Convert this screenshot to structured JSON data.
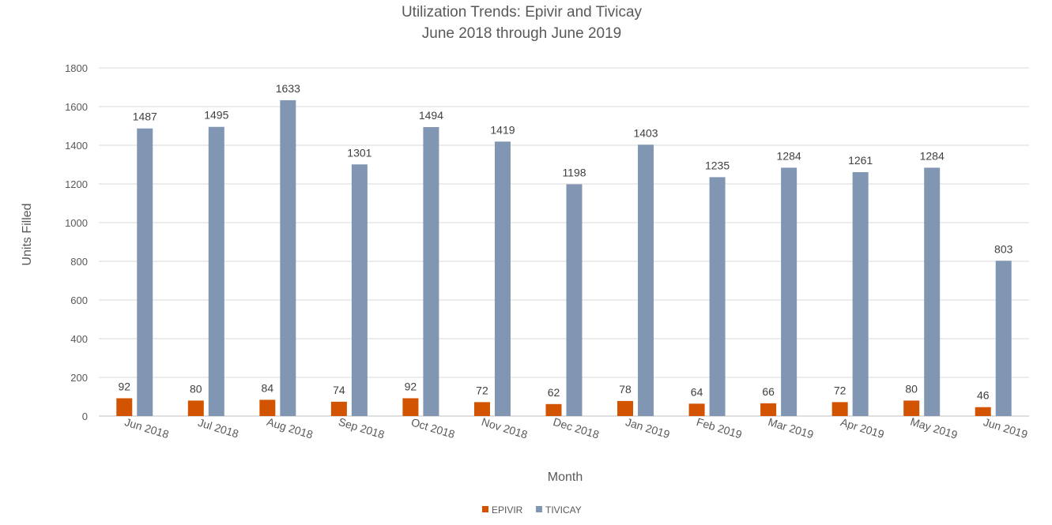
{
  "chart_data": {
    "type": "bar",
    "title": "Utilization Trends:  Epivir and Tivicay",
    "subtitle": "June 2018 through June 2019",
    "xlabel": "Month",
    "ylabel": "Units Filled",
    "ylim": [
      0,
      1800
    ],
    "yticks": [
      0,
      200,
      400,
      600,
      800,
      1000,
      1200,
      1400,
      1600,
      1800
    ],
    "grid": true,
    "legend_position": "bottom",
    "categories": [
      "Jun 2018",
      "Jul 2018",
      "Aug 2018",
      "Sep 2018",
      "Oct 2018",
      "Nov 2018",
      "Dec 2018",
      "Jan 2019",
      "Feb 2019",
      "Mar 2019",
      "Apr 2019",
      "May 2019",
      "Jun 2019"
    ],
    "series": [
      {
        "name": "EPIVIR",
        "color": "#d35400",
        "values": [
          92,
          80,
          84,
          74,
          92,
          72,
          62,
          78,
          64,
          66,
          72,
          80,
          46
        ]
      },
      {
        "name": "TIVICAY",
        "color": "#8096b3",
        "values": [
          1487,
          1495,
          1633,
          1301,
          1494,
          1419,
          1198,
          1403,
          1235,
          1284,
          1261,
          1284,
          803
        ]
      }
    ]
  }
}
